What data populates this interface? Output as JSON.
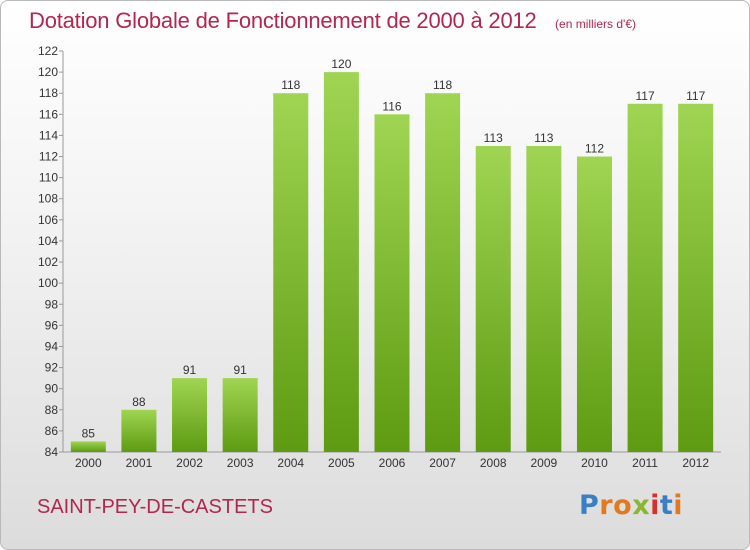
{
  "title": "Dotation Globale de Fonctionnement de 2000 à 2012",
  "unit_note": "(en milliers d'€)",
  "commune": "SAINT-PEY-DE-CASTETS",
  "logo": {
    "text": "Proxiti",
    "letters": [
      {
        "ch": "P",
        "color": "#3a7fc4"
      },
      {
        "ch": "r",
        "color": "#e07a1f"
      },
      {
        "ch": "o",
        "color": "#e07a1f"
      },
      {
        "ch": "x",
        "color": "#8ab72c"
      },
      {
        "ch": "i",
        "color": "#d6302e"
      },
      {
        "ch": "t",
        "color": "#3a7fc4"
      },
      {
        "ch": "i",
        "color": "#e07a1f"
      }
    ]
  },
  "colors": {
    "title": "#b3264f",
    "bar_light": "#9fd552",
    "bar_dark": "#5e9a12"
  },
  "chart_data": {
    "type": "bar",
    "categories": [
      "2000",
      "2001",
      "2002",
      "2003",
      "2004",
      "2005",
      "2006",
      "2007",
      "2008",
      "2009",
      "2010",
      "2011",
      "2012"
    ],
    "values": [
      85,
      88,
      91,
      91,
      118,
      120,
      116,
      118,
      113,
      113,
      112,
      117,
      117
    ],
    "ylim": [
      84,
      122
    ],
    "yticks": [
      84,
      86,
      88,
      90,
      92,
      94,
      96,
      98,
      100,
      102,
      104,
      106,
      108,
      110,
      112,
      114,
      116,
      118,
      120,
      122
    ],
    "grid": false
  }
}
